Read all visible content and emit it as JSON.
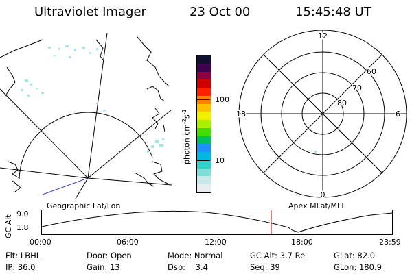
{
  "header": {
    "instrument": "Ultraviolet Imager",
    "date": "23 Oct 00",
    "time": "15:45:48 UT"
  },
  "colorbar": {
    "label_unit": "photon cm",
    "label_exp1": "-2",
    "label_s": "s",
    "label_exp2": "-1",
    "ticks": [
      "100",
      "10"
    ],
    "colors": [
      "#e8eef0",
      "#c8e8ea",
      "#7fded8",
      "#30d0c8",
      "#00b8e0",
      "#2090ff",
      "#00c060",
      "#40e000",
      "#a8f000",
      "#f0f000",
      "#ffc000",
      "#ff8000",
      "#ff2000",
      "#d00000",
      "#900040",
      "#400050",
      "#101030"
    ]
  },
  "geo_panel": {
    "caption": "Geographic Lat/Lon"
  },
  "polar_panel": {
    "caption": "Apex MLat/MLT",
    "mlt_labels": {
      "top": "12",
      "left": "18",
      "right": "6",
      "bottom": "0"
    },
    "lat_labels": [
      "60",
      "70",
      "80"
    ]
  },
  "orbit_plot": {
    "ylabel": "GC Alt",
    "yticks": [
      "9.0",
      "1.8"
    ],
    "xticks": [
      "00:00",
      "06:00",
      "12:00",
      "18:00",
      "23:59"
    ]
  },
  "status": {
    "row1": [
      {
        "name": "filter",
        "text": "Flt: LBHL"
      },
      {
        "name": "door",
        "text": "Door: Open"
      },
      {
        "name": "mode",
        "text": "Mode: Normal"
      },
      {
        "name": "gc-alt",
        "text": "GC Alt: 3.7 Re"
      },
      {
        "name": "glat",
        "text": "GLat: 82.0"
      }
    ],
    "row2": [
      {
        "name": "ip",
        "text": "IP: 36.0"
      },
      {
        "name": "gain",
        "text": "Gain: 13"
      },
      {
        "name": "dsp",
        "text": "Dsp:    3.4"
      },
      {
        "name": "seq",
        "text": "Seq: 39"
      },
      {
        "name": "glon",
        "text": "GLon: 180.9"
      }
    ]
  }
}
